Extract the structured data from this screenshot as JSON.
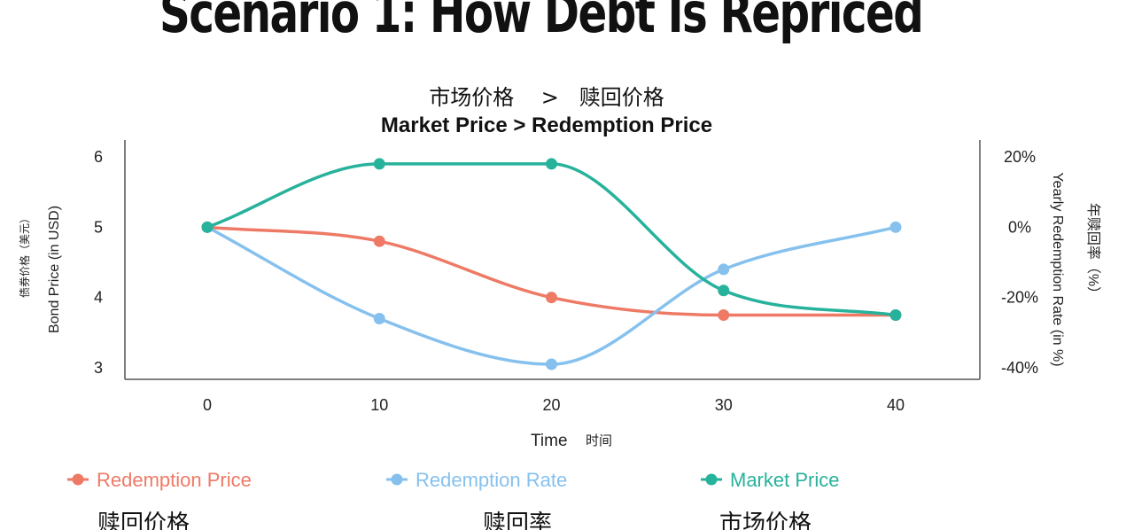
{
  "slide": {
    "title": "Scenario 1: How Debt Is Repriced"
  },
  "chart_data": {
    "type": "line",
    "title": "Market Price > Redemption Price",
    "title_cn": "市场价格    >   赎回价格",
    "xlabel": "Time",
    "xlabel_cn": "时间",
    "ylabel": "Bond Price (in USD)",
    "ylabel_cn": "债券价格（美元）",
    "y2label": "Yearly Redemption Rate (in %)",
    "y2label_cn": "年赎回率（%）",
    "x": [
      0,
      10,
      20,
      30,
      40
    ],
    "x_tick_labels": [
      "0",
      "10",
      "20",
      "30",
      "40"
    ],
    "ylim": [
      3,
      6
    ],
    "y_tick_labels": [
      "3",
      "4",
      "5",
      "6"
    ],
    "y2lim": [
      -40,
      20
    ],
    "y2_tick_labels": [
      "-40%",
      "-20%",
      "0%",
      "20%"
    ],
    "curve": "smooth",
    "grid": false,
    "legend_position": "bottom",
    "series": [
      {
        "name": "Redemption Price",
        "name_cn": "赎回价格",
        "axis": "left",
        "color": "#EE7A66",
        "values": [
          5.0,
          4.8,
          4.0,
          3.75,
          3.75
        ]
      },
      {
        "name": "Redemption Rate",
        "name_cn": "赎回率",
        "axis": "right",
        "color": "#86C1EE",
        "values": [
          0,
          -26,
          -39,
          -12,
          0
        ]
      },
      {
        "name": "Market Price",
        "name_cn": "市场价格",
        "axis": "left",
        "color": "#27B29C",
        "values": [
          5.0,
          5.9,
          5.9,
          4.1,
          3.75
        ]
      }
    ]
  }
}
